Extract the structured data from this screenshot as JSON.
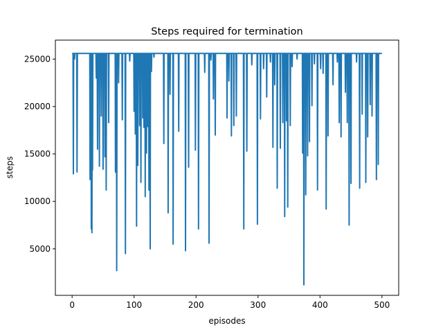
{
  "chart_data": {
    "type": "line",
    "title": "Steps required for termination",
    "xlabel": "episodes",
    "ylabel": "steps",
    "xlim": [
      -27,
      527
    ],
    "ylim": [
      100,
      27000
    ],
    "xticks": [
      0,
      100,
      200,
      300,
      400,
      500
    ],
    "yticks": [
      5000,
      10000,
      15000,
      20000,
      25000
    ],
    "grid": false,
    "legend": "none",
    "series_color": "#1f77b4",
    "baseline": 25600,
    "dips": [
      [
        2,
        12900
      ],
      [
        4,
        25000
      ],
      [
        8,
        13100
      ],
      [
        29,
        12300
      ],
      [
        31,
        7100
      ],
      [
        32,
        6700
      ],
      [
        33,
        13300
      ],
      [
        39,
        23000
      ],
      [
        41,
        15500
      ],
      [
        44,
        13700
      ],
      [
        47,
        19000
      ],
      [
        50,
        13400
      ],
      [
        53,
        14700
      ],
      [
        55,
        11200
      ],
      [
        59,
        18300
      ],
      [
        70,
        13100
      ],
      [
        72,
        2700
      ],
      [
        75,
        22500
      ],
      [
        81,
        18600
      ],
      [
        86,
        4500
      ],
      [
        93,
        24800
      ],
      [
        100,
        19500
      ],
      [
        102,
        17100
      ],
      [
        104,
        7400
      ],
      [
        106,
        13800
      ],
      [
        109,
        18000
      ],
      [
        111,
        12000
      ],
      [
        114,
        18800
      ],
      [
        116,
        17800
      ],
      [
        118,
        10500
      ],
      [
        120,
        15100
      ],
      [
        122,
        17900
      ],
      [
        124,
        11200
      ],
      [
        126,
        5000
      ],
      [
        128,
        23700
      ],
      [
        132,
        25200
      ],
      [
        148,
        16100
      ],
      [
        155,
        8800
      ],
      [
        158,
        21300
      ],
      [
        163,
        5500
      ],
      [
        172,
        17400
      ],
      [
        183,
        4800
      ],
      [
        188,
        13600
      ],
      [
        199,
        15400
      ],
      [
        204,
        7100
      ],
      [
        214,
        23600
      ],
      [
        221,
        5600
      ],
      [
        224,
        24900
      ],
      [
        228,
        20800
      ],
      [
        231,
        17000
      ],
      [
        250,
        18800
      ],
      [
        253,
        22700
      ],
      [
        257,
        16900
      ],
      [
        261,
        18000
      ],
      [
        265,
        19000
      ],
      [
        277,
        7100
      ],
      [
        282,
        15300
      ],
      [
        290,
        24400
      ],
      [
        299,
        7600
      ],
      [
        304,
        18700
      ],
      [
        309,
        24000
      ],
      [
        314,
        21000
      ],
      [
        320,
        24700
      ],
      [
        324,
        15700
      ],
      [
        327,
        22300
      ],
      [
        331,
        11400
      ],
      [
        336,
        15600
      ],
      [
        340,
        18300
      ],
      [
        343,
        8400
      ],
      [
        346,
        18500
      ],
      [
        348,
        9400
      ],
      [
        352,
        18000
      ],
      [
        355,
        24200
      ],
      [
        363,
        25000
      ],
      [
        372,
        15100
      ],
      [
        374,
        1200
      ],
      [
        377,
        10700
      ],
      [
        380,
        14800
      ],
      [
        383,
        16300
      ],
      [
        387,
        20100
      ],
      [
        391,
        24500
      ],
      [
        396,
        11200
      ],
      [
        401,
        24000
      ],
      [
        405,
        23500
      ],
      [
        410,
        9200
      ],
      [
        413,
        16900
      ],
      [
        421,
        22300
      ],
      [
        428,
        24700
      ],
      [
        431,
        18300
      ],
      [
        434,
        16800
      ],
      [
        441,
        21500
      ],
      [
        444,
        18300
      ],
      [
        447,
        7500
      ],
      [
        450,
        11900
      ],
      [
        459,
        24700
      ],
      [
        464,
        11400
      ],
      [
        468,
        19200
      ],
      [
        474,
        12000
      ],
      [
        477,
        16800
      ],
      [
        481,
        20200
      ],
      [
        484,
        19000
      ],
      [
        491,
        12300
      ],
      [
        494,
        13900
      ]
    ]
  }
}
